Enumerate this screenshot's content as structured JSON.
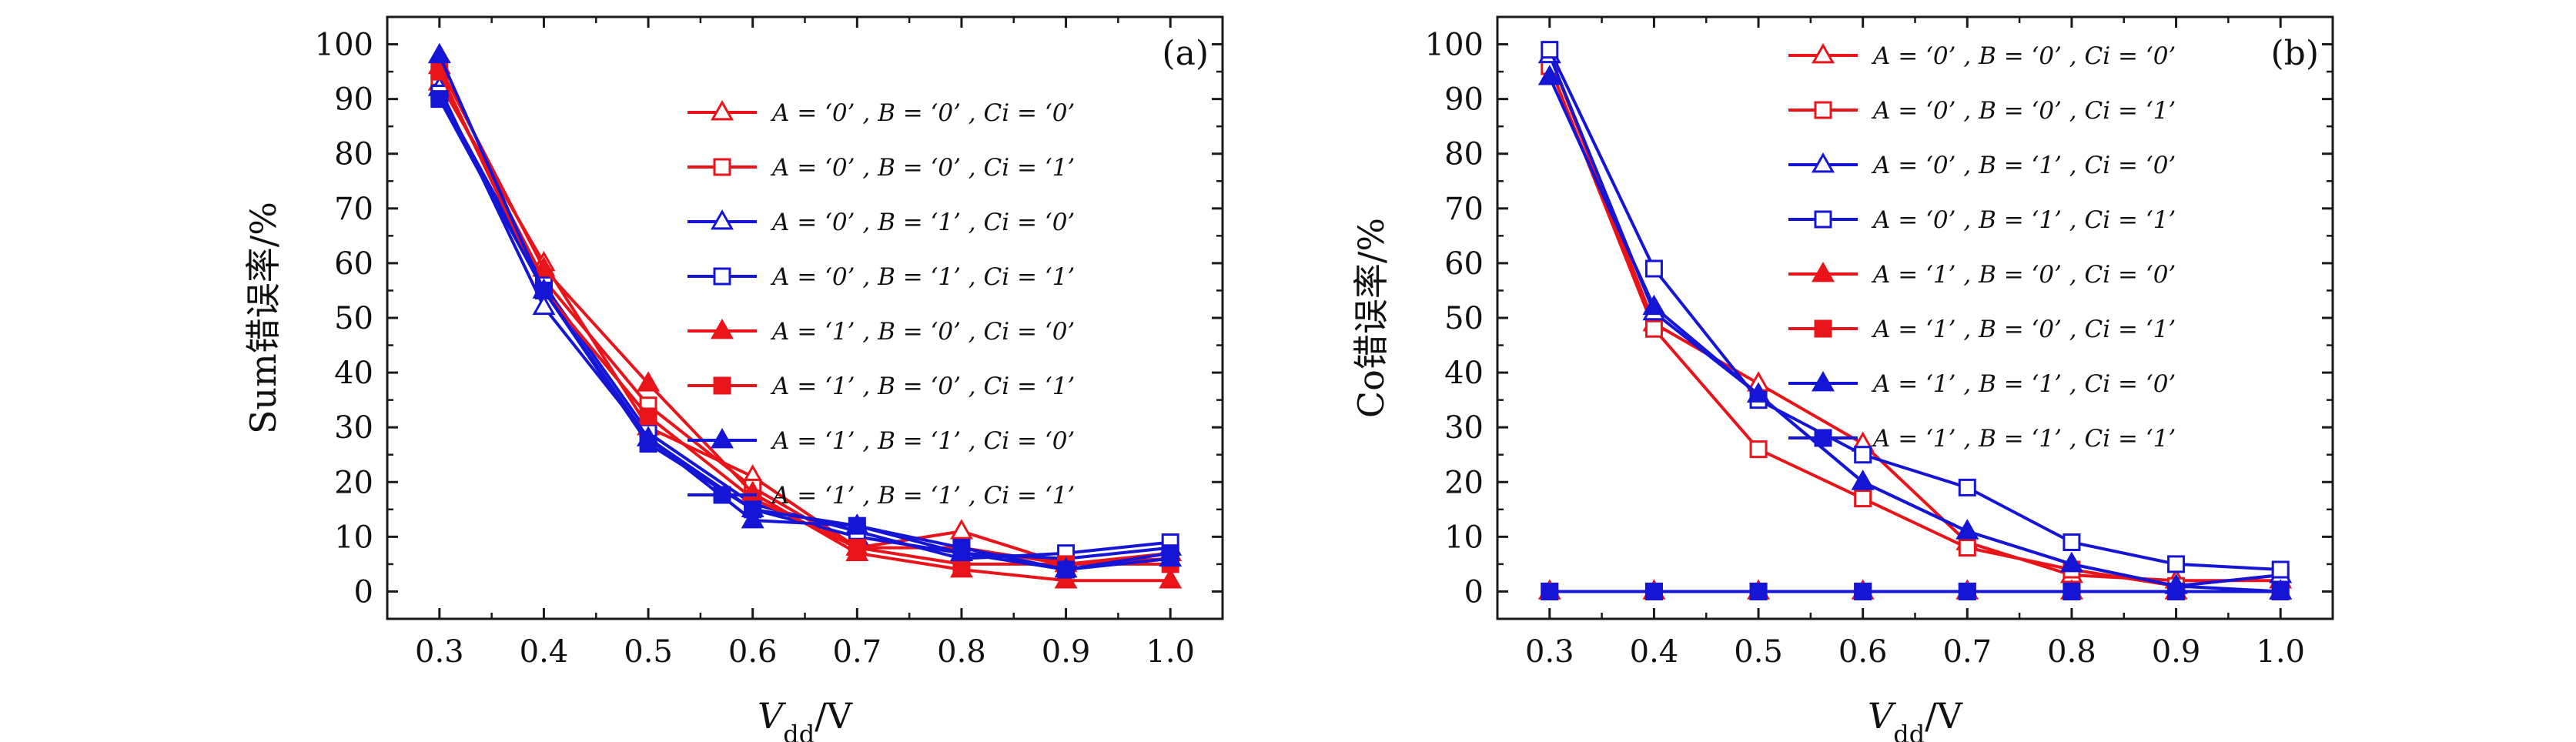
{
  "colors": {
    "red": "#e8141a",
    "blue": "#1515d6",
    "axis": "#1a1a1a"
  },
  "chart_data": [
    {
      "type": "line",
      "panel_label": "(a)",
      "xlabel": {
        "main": "V",
        "sub": "dd",
        "suffix": "/V"
      },
      "ylabel": "Sum错误率/%",
      "xlim": [
        0.25,
        1.05
      ],
      "ylim": [
        -5,
        105
      ],
      "x_ticks": [
        "0.3",
        "0.4",
        "0.5",
        "0.6",
        "0.7",
        "0.8",
        "0.9",
        "1.0"
      ],
      "y_ticks": [
        "0",
        "10",
        "20",
        "30",
        "40",
        "50",
        "60",
        "70",
        "80",
        "90",
        "100"
      ],
      "x": [
        0.3,
        0.4,
        0.5,
        0.6,
        0.7,
        0.8,
        0.9,
        1.0
      ],
      "grid": false,
      "legend_position": "top-right",
      "series": [
        {
          "name": "A = ‘0’ ,  B = ‘0’ ,   Ci = ‘0’",
          "color": "red",
          "marker": "triangle-open",
          "values": [
            93,
            60,
            30,
            21,
            8,
            11,
            5,
            7
          ]
        },
        {
          "name": "A = ‘0’ ,  B = ‘0’ ,   Ci = ‘1’",
          "color": "red",
          "marker": "square-open",
          "values": [
            94,
            57,
            34,
            19,
            8,
            8,
            5,
            6
          ]
        },
        {
          "name": "A = ‘0’ ,  B = ‘1’ ,   Ci = ‘0’",
          "color": "blue",
          "marker": "triangle-open",
          "values": [
            92,
            52,
            28,
            15,
            10,
            7,
            6,
            8
          ]
        },
        {
          "name": "A = ‘0’ ,  B = ‘1’ ,   Ci = ‘1’",
          "color": "blue",
          "marker": "square-open",
          "values": [
            91,
            56,
            29,
            16,
            11,
            6,
            7,
            9
          ]
        },
        {
          "name": "A = ‘1’ ,  B = ‘0’ ,   Ci = ‘0’",
          "color": "red",
          "marker": "triangle-filled",
          "values": [
            96,
            59,
            38,
            18,
            7,
            4,
            2,
            2
          ]
        },
        {
          "name": "A = ‘1’ ,  B = ‘0’ ,   Ci = ‘1’",
          "color": "red",
          "marker": "square-filled",
          "values": [
            95,
            55,
            32,
            17,
            8,
            5,
            5,
            5
          ]
        },
        {
          "name": "A = ‘1’ ,  B = ‘1’ ,   Ci = ‘0’",
          "color": "blue",
          "marker": "triangle-filled",
          "values": [
            98,
            55,
            28,
            13,
            12,
            7,
            4,
            6
          ]
        },
        {
          "name": "A = ‘1’ ,  B = ‘1’ ,   Ci = ‘1’",
          "color": "blue",
          "marker": "square-filled",
          "values": [
            90,
            55,
            27,
            15,
            12,
            8,
            4,
            7
          ]
        }
      ]
    },
    {
      "type": "line",
      "panel_label": "(b)",
      "xlabel": {
        "main": "V",
        "sub": "dd",
        "suffix": "/V"
      },
      "ylabel": "Co错误率/%",
      "xlim": [
        0.25,
        1.05
      ],
      "ylim": [
        -5,
        105
      ],
      "x_ticks": [
        "0.3",
        "0.4",
        "0.5",
        "0.6",
        "0.7",
        "0.8",
        "0.9",
        "1.0"
      ],
      "y_ticks": [
        "0",
        "10",
        "20",
        "30",
        "40",
        "50",
        "60",
        "70",
        "80",
        "90",
        "100"
      ],
      "x": [
        0.3,
        0.4,
        0.5,
        0.6,
        0.7,
        0.8,
        0.9,
        1.0
      ],
      "grid": false,
      "legend_position": "top-right",
      "series": [
        {
          "name": "A = ‘0’ ,  B = ‘0’ , Ci = ‘0’",
          "color": "red",
          "marker": "triangle-open",
          "values": [
            98,
            49,
            38,
            27,
            9,
            3,
            2,
            2
          ]
        },
        {
          "name": "A = ‘0’ ,  B = ‘0’ , Ci = ‘1’",
          "color": "red",
          "marker": "square-open",
          "values": [
            96,
            48,
            26,
            17,
            8,
            4,
            1,
            3
          ]
        },
        {
          "name": "A = ‘0’ ,  B = ‘1’ , Ci = ‘0’",
          "color": "blue",
          "marker": "triangle-open",
          "values": [
            98,
            51,
            36,
            20,
            11,
            5,
            1,
            3
          ]
        },
        {
          "name": "A = ‘0’ ,  B = ‘1’ , Ci = ‘1’",
          "color": "blue",
          "marker": "square-open",
          "values": [
            99,
            59,
            35,
            25,
            19,
            9,
            5,
            4
          ]
        },
        {
          "name": "A = ‘1’ ,  B = ‘0’ , Ci = ‘0’",
          "color": "red",
          "marker": "triangle-filled",
          "values": [
            0,
            0,
            0,
            0,
            0,
            0,
            0,
            0
          ]
        },
        {
          "name": "A = ‘1’ ,  B = ‘0’ , Ci = ‘1’",
          "color": "red",
          "marker": "square-filled",
          "values": [
            0,
            0,
            0,
            0,
            0,
            0,
            0,
            0
          ]
        },
        {
          "name": "A = ‘1’ ,  B = ‘1’ , Ci = ‘0’",
          "color": "blue",
          "marker": "triangle-filled",
          "values": [
            94,
            52,
            36,
            20,
            11,
            5,
            1,
            0
          ]
        },
        {
          "name": "A = ‘1’ ,  B = ‘1’ , Ci = ‘1’",
          "color": "blue",
          "marker": "square-filled",
          "values": [
            0,
            0,
            0,
            0,
            0,
            0,
            0,
            0
          ]
        }
      ]
    }
  ]
}
